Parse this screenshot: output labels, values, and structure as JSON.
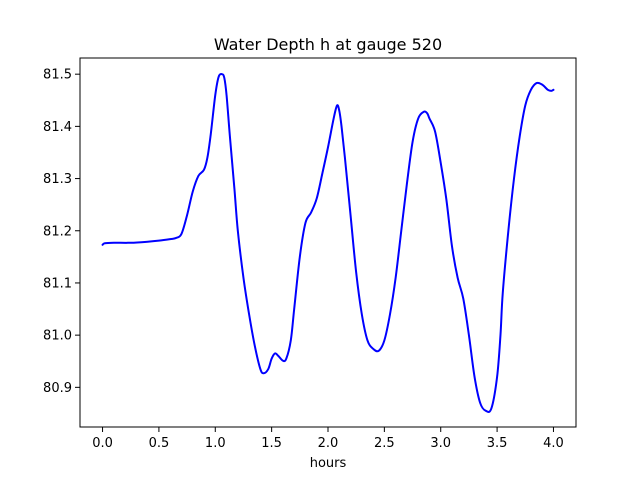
{
  "chart_data": {
    "type": "line",
    "title": "Water Depth h at gauge 520",
    "xlabel": "hours",
    "ylabel": "",
    "xlim": [
      -0.2,
      4.2
    ],
    "ylim": [
      80.824,
      81.531
    ],
    "x_ticks": [
      0.0,
      0.5,
      1.0,
      1.5,
      2.0,
      2.5,
      3.0,
      3.5,
      4.0
    ],
    "x_tick_labels": [
      "0.0",
      "0.5",
      "1.0",
      "1.5",
      "2.0",
      "2.5",
      "3.0",
      "3.5",
      "4.0"
    ],
    "y_ticks": [
      80.9,
      81.0,
      81.1,
      81.2,
      81.3,
      81.4,
      81.5
    ],
    "y_tick_labels": [
      "80.9",
      "81.0",
      "81.1",
      "81.2",
      "81.3",
      "81.4",
      "81.5"
    ],
    "grid": false,
    "legend": "none",
    "series": [
      {
        "color": "#0000ff",
        "x": [
          0.0,
          0.02,
          0.1,
          0.25,
          0.4,
          0.5,
          0.6,
          0.65,
          0.7,
          0.75,
          0.8,
          0.85,
          0.9,
          0.93,
          0.96,
          1.0,
          1.03,
          1.06,
          1.08,
          1.1,
          1.13,
          1.17,
          1.2,
          1.25,
          1.3,
          1.35,
          1.4,
          1.43,
          1.47,
          1.5,
          1.53,
          1.56,
          1.6,
          1.63,
          1.67,
          1.7,
          1.75,
          1.8,
          1.85,
          1.9,
          1.95,
          2.0,
          2.05,
          2.08,
          2.1,
          2.12,
          2.15,
          2.2,
          2.25,
          2.3,
          2.35,
          2.4,
          2.45,
          2.5,
          2.55,
          2.6,
          2.65,
          2.7,
          2.75,
          2.8,
          2.85,
          2.88,
          2.9,
          2.95,
          3.0,
          3.05,
          3.1,
          3.15,
          3.2,
          3.25,
          3.3,
          3.35,
          3.4,
          3.45,
          3.5,
          3.53,
          3.55,
          3.6,
          3.65,
          3.7,
          3.75,
          3.8,
          3.85,
          3.9,
          3.95,
          3.98,
          4.0
        ],
        "values": [
          81.173,
          81.176,
          81.177,
          81.177,
          81.179,
          81.181,
          81.184,
          81.186,
          81.194,
          81.23,
          81.275,
          81.305,
          81.317,
          81.34,
          81.385,
          81.46,
          81.495,
          81.5,
          81.493,
          81.46,
          81.38,
          81.28,
          81.2,
          81.11,
          81.04,
          80.98,
          80.935,
          80.927,
          80.935,
          80.955,
          80.965,
          80.96,
          80.951,
          80.955,
          80.99,
          81.05,
          81.15,
          81.215,
          81.235,
          81.262,
          81.31,
          81.36,
          81.415,
          81.44,
          81.43,
          81.4,
          81.34,
          81.23,
          81.12,
          81.04,
          80.99,
          80.974,
          80.97,
          80.99,
          81.04,
          81.11,
          81.2,
          81.29,
          81.37,
          81.415,
          81.428,
          81.425,
          81.415,
          81.39,
          81.33,
          81.26,
          81.17,
          81.11,
          81.07,
          81.0,
          80.92,
          80.87,
          80.855,
          80.86,
          80.92,
          81.0,
          81.08,
          81.2,
          81.3,
          81.38,
          81.44,
          81.47,
          81.483,
          81.48,
          81.47,
          81.468,
          81.47
        ]
      }
    ]
  }
}
